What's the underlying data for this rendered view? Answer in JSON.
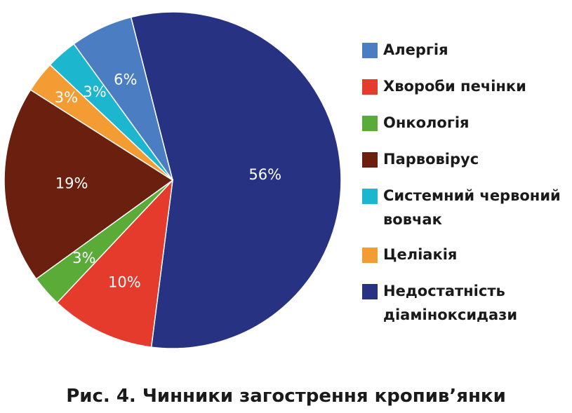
{
  "chart_data": {
    "type": "pie",
    "categories": [
      "Алергія",
      "Хвороби печінки",
      "Онкологія",
      "Парвовірус",
      "Системний червоний вовчак",
      "Целіакія",
      "Недостатність діаміноксидази"
    ],
    "values": [
      6,
      10,
      3,
      19,
      3,
      3,
      56
    ],
    "value_labels": [
      "6%",
      "10%",
      "3%",
      "19%",
      "3%",
      "3%",
      "56%"
    ],
    "colors": [
      "#4a7dc2",
      "#e43b2c",
      "#5aab37",
      "#6b1f0e",
      "#1cb7cf",
      "#f29c33",
      "#273282"
    ],
    "legend_position": "right"
  },
  "caption": "Рис. 4. Чинники загострення кропив’янки"
}
